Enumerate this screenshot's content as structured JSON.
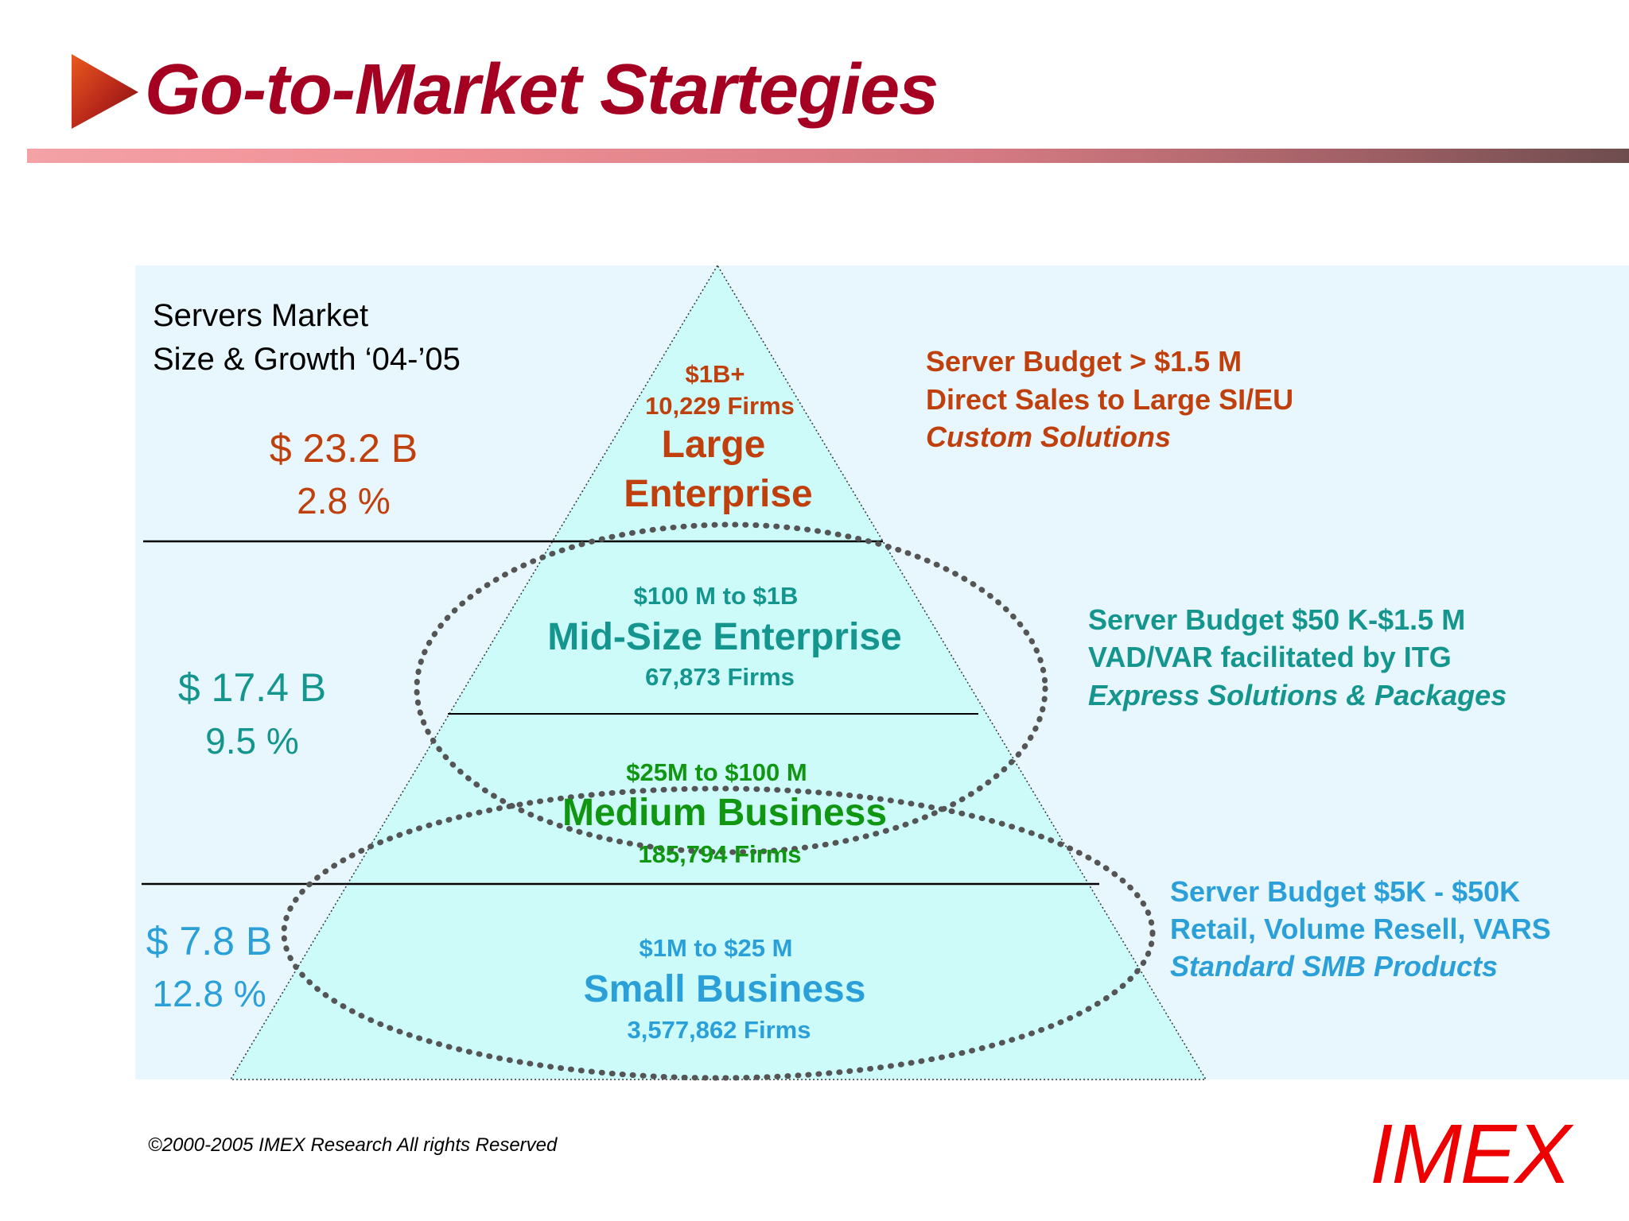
{
  "title": "Go-to-Market Startegies",
  "footer": {
    "copyright": "©2000-2005  IMEX Research All rights Reserved",
    "logo": "IMEX"
  },
  "colors": {
    "title": "#a50021",
    "large": "#c0400d",
    "mid": "#14958e",
    "medium_business": "#119611",
    "small": "#2a9fd8",
    "logo": "#ee0000",
    "panel": "#e8f6fd",
    "pyramid": "#ccfbfa"
  },
  "diagram": {
    "market_label": [
      "Servers Market",
      "Size & Growth ‘04-’05"
    ],
    "tiers": [
      {
        "id": "large",
        "size": "$ 23.2 B",
        "growth": "2.8 %",
        "range": "$1B+",
        "firms": "10,229 Firms",
        "name": [
          "Large",
          "Enterprise"
        ],
        "notes": [
          "Server Budget > $1.5 M",
          "Direct Sales to Large SI/EU",
          "Custom Solutions"
        ]
      },
      {
        "id": "mid",
        "size": "$ 17.4 B",
        "growth": "9.5 %",
        "range": "$100 M to $1B",
        "name": "Mid-Size Enterprise",
        "firms": "67,873 Firms",
        "notes": [
          "Server Budget $50 K-$1.5 M",
          "VAD/VAR facilitated by ITG",
          "Express Solutions & Packages"
        ]
      },
      {
        "id": "medium",
        "range": "$25M to $100 M",
        "name": "Medium Business",
        "firms": "185,794 Firms"
      },
      {
        "id": "small",
        "size": "$ 7.8 B",
        "growth": "12.8 %",
        "range": "$1M to $25 M",
        "name": "Small Business",
        "firms": "3,577,862 Firms",
        "notes": [
          "Server Budget $5K - $50K",
          "Retail, Volume Resell, VARS",
          "Standard SMB Products"
        ]
      }
    ]
  }
}
